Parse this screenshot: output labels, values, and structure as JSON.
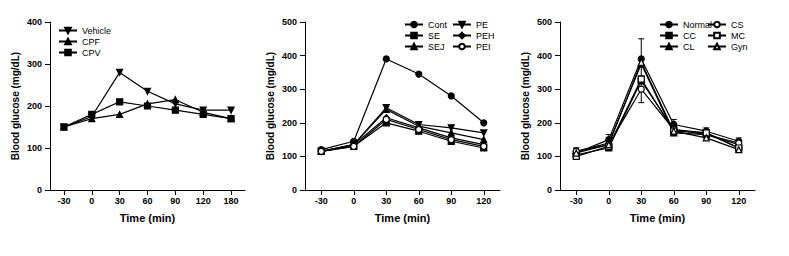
{
  "chart_data": [
    {
      "type": "line",
      "x_label": "Time (min)",
      "y_label": "Blood glucose (mg/dL)",
      "categories": [
        "-30",
        "0",
        "30",
        "60",
        "90",
        "120",
        "180"
      ],
      "ylim": [
        0,
        400
      ],
      "yticks": [
        0,
        100,
        200,
        300,
        400
      ],
      "grid": false,
      "legend": "upper left",
      "series": [
        {
          "name": "Vehicle",
          "color": "#000000",
          "marker": "triangle_down",
          "values": [
            150,
            175,
            280,
            235,
            205,
            190,
            190
          ]
        },
        {
          "name": "CPF",
          "color": "#000000",
          "marker": "triangle",
          "values": [
            150,
            170,
            180,
            205,
            215,
            185,
            170
          ]
        },
        {
          "name": "CPV",
          "color": "#000000",
          "marker": "square",
          "values": [
            150,
            180,
            210,
            200,
            190,
            180,
            170
          ]
        }
      ]
    },
    {
      "type": "line",
      "x_label": "Time (min)",
      "y_label": "Blood glucose (mg/dL)",
      "categories": [
        "-30",
        "0",
        "30",
        "60",
        "90",
        "120"
      ],
      "ylim": [
        0,
        500
      ],
      "yticks": [
        0,
        100,
        200,
        300,
        400,
        500
      ],
      "grid": false,
      "legend": "upper right",
      "series": [
        {
          "name": "Cont",
          "color": "#000000",
          "marker": "circle",
          "values": [
            120,
            145,
            390,
            345,
            280,
            200
          ]
        },
        {
          "name": "SE",
          "color": "#000000",
          "marker": "square",
          "values": [
            115,
            130,
            200,
            175,
            145,
            125
          ]
        },
        {
          "name": "SEJ",
          "color": "#000000",
          "marker": "triangle",
          "values": [
            115,
            135,
            240,
            190,
            170,
            150
          ]
        },
        {
          "name": "PE",
          "color": "#000000",
          "marker": "triangle_down",
          "values": [
            115,
            135,
            245,
            195,
            185,
            170
          ]
        },
        {
          "name": "PEH",
          "color": "#000000",
          "marker": "diamond",
          "values": [
            115,
            135,
            215,
            185,
            155,
            135
          ]
        },
        {
          "name": "PEI",
          "color": "#000000",
          "marker": "open_circle",
          "values": [
            115,
            130,
            210,
            180,
            150,
            130
          ]
        }
      ]
    },
    {
      "type": "line",
      "x_label": "Time (min)",
      "y_label": "Blood glucose (mg/dL)",
      "categories": [
        "-30",
        "0",
        "30",
        "60",
        "90",
        "120"
      ],
      "ylim": [
        0,
        500
      ],
      "yticks": [
        0,
        100,
        200,
        300,
        400,
        500
      ],
      "grid": false,
      "legend": "upper right",
      "series": [
        {
          "name": "Normal",
          "color": "#000000",
          "marker": "circle",
          "values": [
            110,
            150,
            390,
            195,
            175,
            145
          ],
          "errors": [
            15,
            15,
            60,
            15,
            10,
            10
          ]
        },
        {
          "name": "CC",
          "color": "#000000",
          "marker": "square",
          "values": [
            105,
            125,
            325,
            180,
            170,
            125
          ]
        },
        {
          "name": "CL",
          "color": "#000000",
          "marker": "triangle",
          "values": [
            115,
            140,
            375,
            170,
            165,
            135
          ]
        },
        {
          "name": "CS",
          "color": "#000000",
          "marker": "open_circle",
          "values": [
            115,
            135,
            300,
            180,
            165,
            140
          ],
          "errors": [
            10,
            10,
            40,
            10,
            10,
            10
          ]
        },
        {
          "name": "MC",
          "color": "#000000",
          "marker": "open_square",
          "values": [
            100,
            130,
            330,
            175,
            170,
            125
          ]
        },
        {
          "name": "Gyn",
          "color": "#000000",
          "marker": "open_triangle",
          "values": [
            110,
            135,
            380,
            175,
            155,
            120
          ]
        }
      ]
    }
  ]
}
